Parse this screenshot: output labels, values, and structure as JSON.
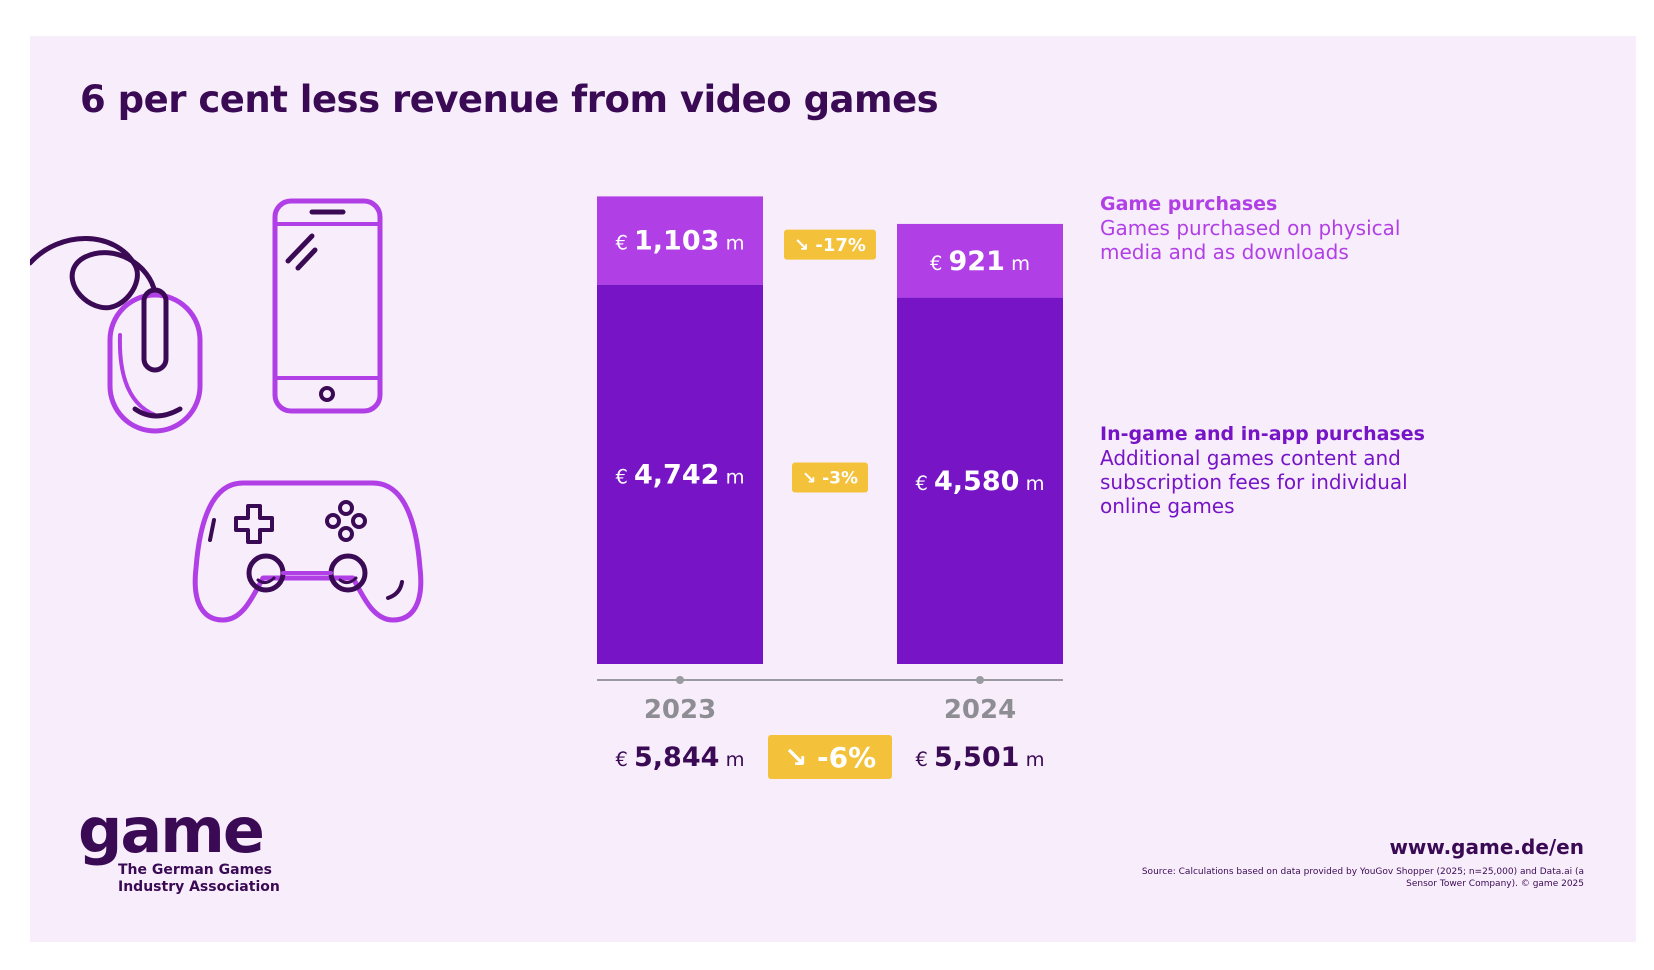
{
  "title": "6 per cent less revenue from video games",
  "colors": {
    "background": "#f8eefb",
    "game_purchases": "#b13fe6",
    "in_game": "#7614c6",
    "badge": "#f3c13a",
    "dark_text": "#3b0a55",
    "axis": "#9a9aa0"
  },
  "icons": [
    "computer-mouse-icon",
    "smartphone-icon",
    "gamepad-icon"
  ],
  "legend": {
    "game_purchases": {
      "title": "Game purchases",
      "description": "Games purchased on physical media and as downloads"
    },
    "in_game": {
      "title": "In-game and in-app purchases",
      "description": "Additional games content and subscription fees for individual online games"
    }
  },
  "chart_data": {
    "type": "bar",
    "stacked": true,
    "categories": [
      "2023",
      "2024"
    ],
    "unit_prefix": "€",
    "unit_suffix": "m",
    "series": [
      {
        "name": "In-game and in-app purchases",
        "values": [
          4742,
          4580
        ],
        "labels": [
          "4,742",
          "4,580"
        ],
        "change": "-3%"
      },
      {
        "name": "Game purchases",
        "values": [
          1103,
          921
        ],
        "labels": [
          "1,103",
          "921"
        ],
        "change": "-17%"
      }
    ],
    "totals": {
      "values": [
        5844,
        5501
      ],
      "labels": [
        "5,844",
        "5,501"
      ],
      "change": "-6%"
    },
    "ylim": [
      0,
      6200
    ],
    "grid": false,
    "legend_placement": "right"
  },
  "footer": {
    "logo_word": "game",
    "logo_subtitle": [
      "The German Games",
      "Industry Association"
    ],
    "url": "www.game.de/en",
    "source": "Source: Calculations based on data provided by YouGov Shopper (2025; n=25,000) and Data.ai (a Sensor Tower Company). © game 2025"
  }
}
